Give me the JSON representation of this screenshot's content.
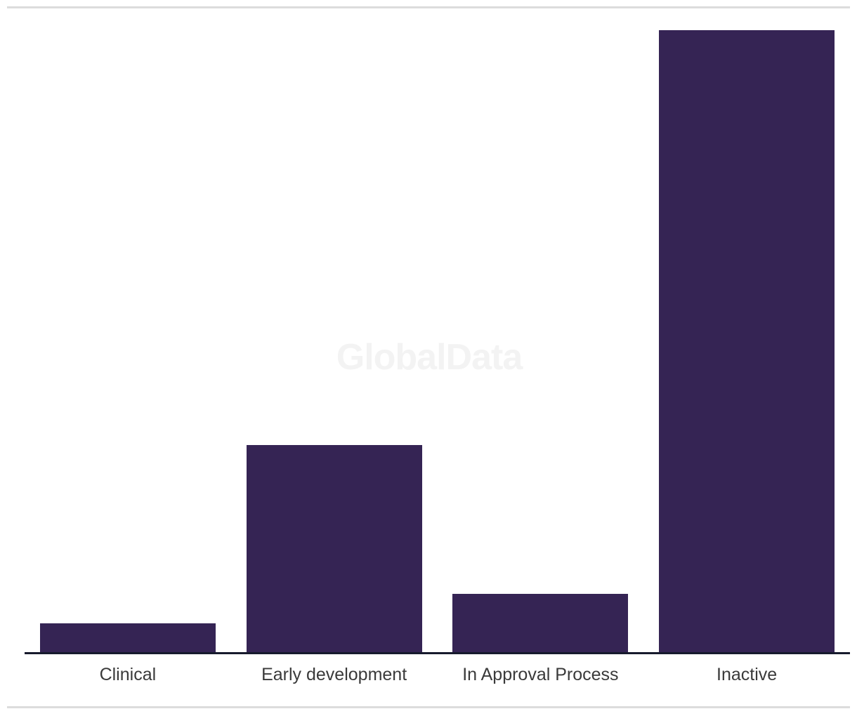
{
  "watermark": {
    "text": "GlobalData",
    "color": "#f3f3f3"
  },
  "frame": {
    "divider_color": "#dcdcdc"
  },
  "chart_data": {
    "type": "bar",
    "title": "",
    "xlabel": "",
    "ylabel": "",
    "categories": [
      "Clinical",
      "Early development",
      "In Approval Process",
      "Inactive"
    ],
    "values": [
      4.6,
      33.3,
      9.4,
      100
    ],
    "ylim": [
      0,
      100
    ],
    "y_axis_visible": false,
    "values_are_relative": "no y-axis or data labels shown; values normalized to tallest bar = 100",
    "bar_color": "#352454",
    "axis_color": "#171b2d",
    "label_color": "#3a3a3a",
    "grid": false,
    "legend": false
  }
}
